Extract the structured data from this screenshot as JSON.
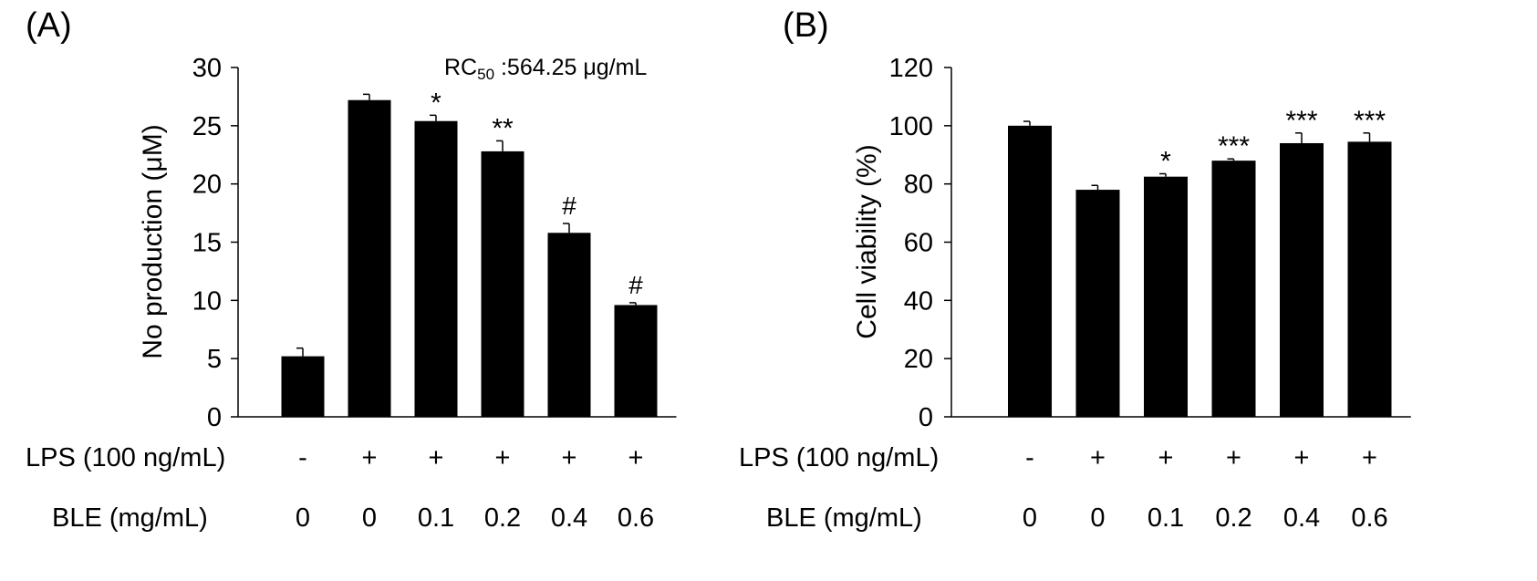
{
  "panels": [
    {
      "panel_label": "(A)",
      "annotation_prefix": "RC",
      "annotation_sub": "50",
      "annotation_suffix": " :564.25 μg/mL"
    },
    {
      "panel_label": "(B)"
    }
  ],
  "conditions": {
    "lps_label": "LPS (100 ng/mL)",
    "lps_values": [
      "-",
      "+",
      "+",
      "+",
      "+",
      "+"
    ],
    "ble_label": "BLE (mg/mL)",
    "ble_values": [
      "0",
      "0",
      "0.1",
      "0.2",
      "0.4",
      "0.6"
    ]
  },
  "chart_data": [
    {
      "type": "bar",
      "ylabel": "No production (μM)",
      "ylim": [
        0,
        30
      ],
      "yticks": [
        "0",
        "5",
        "10",
        "15",
        "20",
        "25",
        "30"
      ],
      "categories": [
        "-/0",
        "+/0",
        "+/0.1",
        "+/0.2",
        "+/0.4",
        "+/0.6"
      ],
      "values": [
        5.2,
        27.2,
        25.4,
        22.8,
        15.8,
        9.6
      ],
      "errors": [
        0.7,
        0.5,
        0.5,
        0.9,
        0.8,
        0.2
      ],
      "significance": [
        "",
        "",
        "*",
        "**",
        "#",
        "#"
      ],
      "bar_color": "#000000"
    },
    {
      "type": "bar",
      "ylabel": "Cell viability (%)",
      "ylim": [
        0,
        120
      ],
      "yticks": [
        "0",
        "20",
        "40",
        "60",
        "80",
        "100",
        "120"
      ],
      "categories": [
        "-/0",
        "+/0",
        "+/0.1",
        "+/0.2",
        "+/0.4",
        "+/0.6"
      ],
      "values": [
        100,
        78,
        82.5,
        88,
        94,
        94.5
      ],
      "errors": [
        1.5,
        1.5,
        1.0,
        0.6,
        3.5,
        3.0
      ],
      "significance": [
        "",
        "",
        "*",
        "***",
        "***",
        "***"
      ],
      "bar_color": "#000000"
    }
  ]
}
